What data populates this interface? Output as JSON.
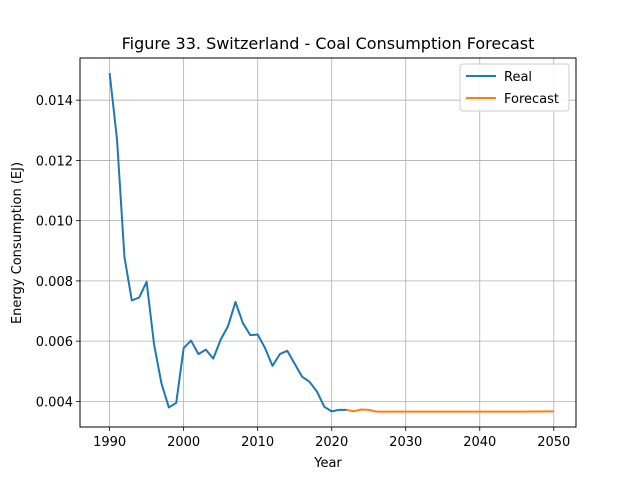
{
  "chart_data": {
    "type": "line",
    "title": "Figure 33. Switzerland - Coal Consumption Forecast",
    "xlabel": "Year",
    "ylabel": "Energy Consumption (EJ)",
    "xlim": [
      1986,
      2053
    ],
    "ylim": [
      0.00315,
      0.0154
    ],
    "xticks": [
      1990,
      2000,
      2010,
      2020,
      2030,
      2040,
      2050
    ],
    "yticks": [
      0.004,
      0.006,
      0.008,
      0.01,
      0.012,
      0.014
    ],
    "ytick_labels": [
      "0.004",
      "0.006",
      "0.008",
      "0.010",
      "0.012",
      "0.014"
    ],
    "grid": true,
    "legend_position": "top-right",
    "series": [
      {
        "name": "Real",
        "color": "#1f77b4",
        "x": [
          1990,
          1991,
          1992,
          1993,
          1994,
          1995,
          1996,
          1997,
          1998,
          1999,
          2000,
          2001,
          2002,
          2003,
          2004,
          2005,
          2006,
          2007,
          2008,
          2009,
          2010,
          2011,
          2012,
          2013,
          2014,
          2015,
          2016,
          2017,
          2018,
          2019,
          2020,
          2021,
          2022
        ],
        "y": [
          0.0149,
          0.0127,
          0.0088,
          0.00735,
          0.00745,
          0.00797,
          0.0059,
          0.0046,
          0.0038,
          0.00395,
          0.00577,
          0.00602,
          0.00557,
          0.00572,
          0.00542,
          0.00605,
          0.0065,
          0.0073,
          0.0066,
          0.0062,
          0.00622,
          0.00577,
          0.00518,
          0.00557,
          0.00568,
          0.00525,
          0.00482,
          0.00465,
          0.00433,
          0.00382,
          0.00367,
          0.00372,
          0.00372
        ]
      },
      {
        "name": "Forecast",
        "color": "#ff7f0e",
        "x": [
          2022,
          2023,
          2024,
          2025,
          2026,
          2027,
          2028,
          2030,
          2035,
          2040,
          2045,
          2050
        ],
        "y": [
          0.00372,
          0.00367,
          0.00373,
          0.00372,
          0.00366,
          0.00366,
          0.00366,
          0.00366,
          0.00366,
          0.00366,
          0.00366,
          0.00367
        ]
      }
    ]
  }
}
